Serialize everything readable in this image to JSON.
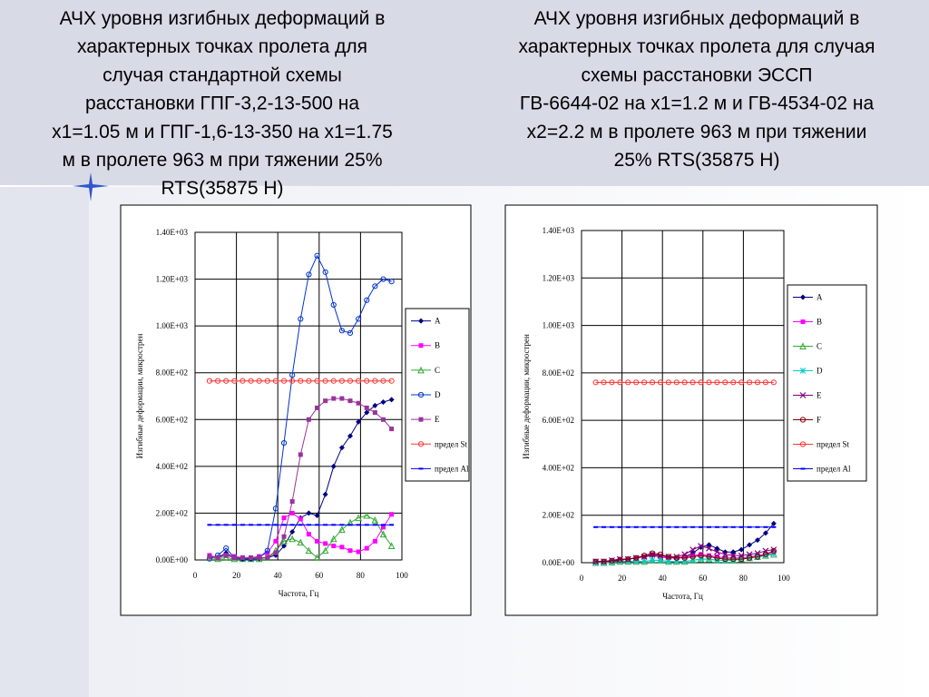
{
  "chart_data": [
    {
      "type": "line",
      "title": [
        "АЧХ уровня изгибных деформаций в",
        "характерных точках пролета для",
        "случая стандартной схемы",
        "расстановки ГПГ-3,2-13-500 на",
        "x1=1.05 м и ГПГ-1,6-13-350 на x1=1.75",
        "м в пролете 963 м при тяжении 25%",
        "RTS(35875 Н)"
      ],
      "xlabel": "Частота, Гц",
      "ylabel": "Изгибные деформации, микрострен",
      "xlim": [
        0,
        100
      ],
      "xticks": [
        0,
        20,
        40,
        60,
        80,
        100
      ],
      "ylim": [
        0,
        1400
      ],
      "yticks": [
        {
          "value": 0,
          "label": "0.00E+00"
        },
        {
          "value": 200,
          "label": "2.00E+02"
        },
        {
          "value": 400,
          "label": "4.00E+02"
        },
        {
          "value": 600,
          "label": "6.00E+02"
        },
        {
          "value": 800,
          "label": "8.00E+02"
        },
        {
          "value": 1000,
          "label": "1.00E+03"
        },
        {
          "value": 1200,
          "label": "1.20E+03"
        },
        {
          "value": 1400,
          "label": "1.40E+03"
        }
      ],
      "grid": true,
      "x": [
        7,
        11,
        15,
        19,
        23,
        27,
        31,
        35,
        39,
        43,
        47,
        51,
        55,
        59,
        63,
        67,
        71,
        75,
        79,
        83,
        87,
        91,
        95
      ],
      "series": [
        {
          "name": "A",
          "color": "#000080",
          "marker": "diamond",
          "values": [
            15,
            10,
            30,
            10,
            5,
            5,
            5,
            10,
            20,
            60,
            120,
            180,
            200,
            190,
            280,
            400,
            480,
            530,
            590,
            630,
            660,
            675,
            685
          ]
        },
        {
          "name": "B",
          "color": "#ff00ff",
          "marker": "square",
          "values": [
            20,
            10,
            20,
            15,
            10,
            10,
            15,
            30,
            80,
            180,
            200,
            175,
            110,
            80,
            70,
            60,
            55,
            40,
            35,
            50,
            80,
            140,
            195
          ]
        },
        {
          "name": "C",
          "color": "#33aa33",
          "marker": "triangle",
          "values": [
            10,
            5,
            10,
            5,
            5,
            5,
            5,
            10,
            40,
            80,
            90,
            75,
            40,
            10,
            40,
            90,
            130,
            160,
            180,
            190,
            170,
            110,
            60
          ]
        },
        {
          "name": "D",
          "color": "#0033cc",
          "marker": "circle",
          "values": [
            5,
            20,
            50,
            10,
            5,
            5,
            10,
            40,
            220,
            500,
            790,
            1030,
            1220,
            1300,
            1230,
            1090,
            980,
            970,
            1030,
            1110,
            1170,
            1200,
            1190
          ]
        },
        {
          "name": "E",
          "color": "#993399",
          "marker": "square",
          "values": [
            15,
            10,
            20,
            10,
            10,
            10,
            10,
            10,
            30,
            100,
            250,
            450,
            600,
            650,
            680,
            690,
            690,
            680,
            670,
            650,
            630,
            600,
            560
          ]
        },
        {
          "name": "предел St",
          "color": "#ff3333",
          "marker": "circle",
          "values": [
            765,
            765,
            765,
            765,
            765,
            765,
            765,
            765,
            765,
            765,
            765,
            765,
            765,
            765,
            765,
            765,
            765,
            765,
            765,
            765,
            765,
            765,
            765
          ]
        },
        {
          "name": "предел Al",
          "color": "#0000ff",
          "marker": "dash",
          "values": [
            150,
            150,
            150,
            150,
            150,
            150,
            150,
            150,
            150,
            150,
            150,
            150,
            150,
            150,
            150,
            150,
            150,
            150,
            150,
            150,
            150,
            150,
            150
          ]
        }
      ]
    },
    {
      "type": "line",
      "title": [
        "АЧХ уровня изгибных деформаций в",
        "характерных точках пролета для случая",
        "схемы расстановки ЭССП",
        "ГВ-6644-02 на x1=1.2 м и ГВ-4534-02 на",
        "x2=2.2 м в пролете 963 м при тяжении",
        "25% RTS(35875 Н)"
      ],
      "xlabel": "Частота, Гц",
      "ylabel": "Изгибные деформации, микрострен",
      "xlim": [
        0,
        100
      ],
      "xticks": [
        0,
        20,
        40,
        60,
        80,
        100
      ],
      "ylim": [
        0,
        1400
      ],
      "yticks": [
        {
          "value": 0,
          "label": "0.00E+00"
        },
        {
          "value": 200,
          "label": "2.00E+02"
        },
        {
          "value": 400,
          "label": "4.00E+02"
        },
        {
          "value": 600,
          "label": "6.00E+02"
        },
        {
          "value": 800,
          "label": "8.00E+02"
        },
        {
          "value": 1000,
          "label": "1.00E+03"
        },
        {
          "value": 1200,
          "label": "1.20E+03"
        },
        {
          "value": 1400,
          "label": "1.40E+03"
        }
      ],
      "grid": true,
      "x": [
        7,
        11,
        15,
        19,
        23,
        27,
        31,
        35,
        39,
        43,
        47,
        51,
        55,
        59,
        63,
        67,
        71,
        75,
        79,
        83,
        87,
        91,
        95
      ],
      "series": [
        {
          "name": "A",
          "color": "#000080",
          "marker": "diamond",
          "values": [
            5,
            5,
            5,
            10,
            15,
            20,
            25,
            30,
            25,
            20,
            20,
            25,
            40,
            65,
            75,
            60,
            45,
            45,
            55,
            75,
            95,
            125,
            165
          ]
        },
        {
          "name": "B",
          "color": "#ff00ff",
          "marker": "square",
          "values": [
            5,
            5,
            10,
            15,
            15,
            20,
            25,
            35,
            25,
            20,
            20,
            25,
            30,
            35,
            30,
            25,
            20,
            20,
            20,
            25,
            30,
            35,
            40
          ]
        },
        {
          "name": "C",
          "color": "#33aa33",
          "marker": "triangle",
          "values": [
            0,
            0,
            2,
            5,
            5,
            5,
            5,
            10,
            10,
            5,
            5,
            5,
            10,
            15,
            15,
            10,
            10,
            10,
            15,
            20,
            25,
            30,
            35
          ]
        },
        {
          "name": "D",
          "color": "#00cccc",
          "marker": "cross",
          "values": [
            0,
            0,
            2,
            5,
            5,
            5,
            5,
            10,
            10,
            5,
            5,
            5,
            10,
            15,
            15,
            10,
            10,
            10,
            15,
            20,
            25,
            30,
            38
          ]
        },
        {
          "name": "E",
          "color": "#800080",
          "marker": "x",
          "values": [
            5,
            5,
            10,
            15,
            15,
            20,
            25,
            35,
            30,
            25,
            25,
            35,
            55,
            70,
            60,
            45,
            35,
            30,
            30,
            35,
            40,
            50,
            55
          ]
        },
        {
          "name": "F",
          "color": "#800000",
          "marker": "circle",
          "values": [
            5,
            5,
            8,
            12,
            15,
            20,
            30,
            40,
            35,
            25,
            20,
            20,
            25,
            30,
            25,
            20,
            15,
            15,
            15,
            20,
            25,
            35,
            50
          ]
        },
        {
          "name": "предел St",
          "color": "#ff3333",
          "marker": "circle",
          "values": [
            760,
            760,
            760,
            760,
            760,
            760,
            760,
            760,
            760,
            760,
            760,
            760,
            760,
            760,
            760,
            760,
            760,
            760,
            760,
            760,
            760,
            760,
            760
          ]
        },
        {
          "name": "предел Al",
          "color": "#0000ff",
          "marker": "dash",
          "values": [
            150,
            150,
            150,
            150,
            150,
            150,
            150,
            150,
            150,
            150,
            150,
            150,
            150,
            150,
            150,
            150,
            150,
            150,
            150,
            150,
            150,
            150,
            150
          ]
        }
      ]
    }
  ]
}
